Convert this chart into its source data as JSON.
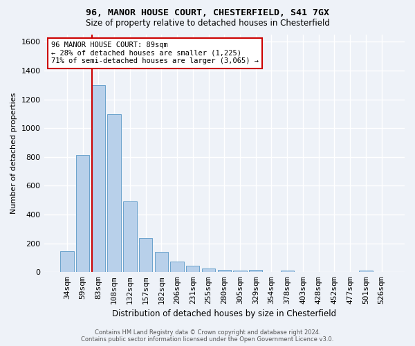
{
  "title_line1": "96, MANOR HOUSE COURT, CHESTERFIELD, S41 7GX",
  "title_line2": "Size of property relative to detached houses in Chesterfield",
  "xlabel": "Distribution of detached houses by size in Chesterfield",
  "ylabel": "Number of detached properties",
  "footer_line1": "Contains HM Land Registry data © Crown copyright and database right 2024.",
  "footer_line2": "Contains public sector information licensed under the Open Government Licence v3.0.",
  "bar_labels": [
    "34sqm",
    "59sqm",
    "83sqm",
    "108sqm",
    "132sqm",
    "157sqm",
    "182sqm",
    "206sqm",
    "231sqm",
    "255sqm",
    "280sqm",
    "305sqm",
    "329sqm",
    "354sqm",
    "378sqm",
    "403sqm",
    "428sqm",
    "452sqm",
    "477sqm",
    "501sqm",
    "526sqm"
  ],
  "bar_values": [
    145,
    815,
    1300,
    1095,
    490,
    235,
    140,
    75,
    47,
    25,
    18,
    10,
    15,
    2,
    12,
    2,
    1,
    1,
    1,
    10,
    1
  ],
  "bar_color": "#b8d0ea",
  "bar_edge_color": "#6ba3cc",
  "vline_color": "#cc0000",
  "vline_x_index": 2.0,
  "annotation_text": "96 MANOR HOUSE COURT: 89sqm\n← 28% of detached houses are smaller (1,225)\n71% of semi-detached houses are larger (3,065) →",
  "annotation_box_color": "#ffffff",
  "annotation_box_edge_color": "#cc0000",
  "ylim": [
    0,
    1650
  ],
  "background_color": "#eef2f8",
  "grid_color": "#ffffff",
  "yticks": [
    0,
    200,
    400,
    600,
    800,
    1000,
    1200,
    1400,
    1600
  ]
}
